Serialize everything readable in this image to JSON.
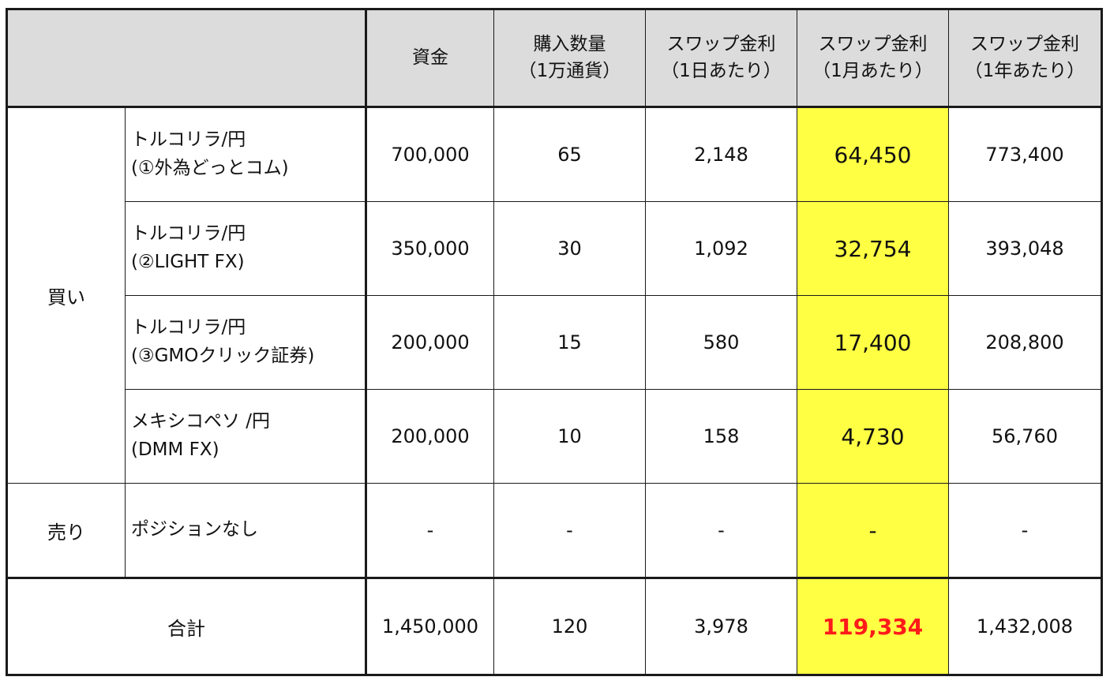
{
  "header": {
    "capital": "資金",
    "quantity_l1": "購入数量",
    "quantity_l2": "（1万通貨）",
    "swap_day_l1": "スワップ金利",
    "swap_day_l2": "（1日あたり）",
    "swap_month_l1": "スワップ金利",
    "swap_month_l2": "（1月あたり）",
    "swap_year_l1": "スワップ金利",
    "swap_year_l2": "（1年あたり）"
  },
  "groups": {
    "buy": "買い",
    "sell": "売り",
    "total": "合計"
  },
  "rows": [
    {
      "name_l1": "トルコリラ/円",
      "name_l2": "(①外為どっとコム)",
      "capital": "700,000",
      "quantity": "65",
      "day": "2,148",
      "month": "64,450",
      "year": "773,400"
    },
    {
      "name_l1": "トルコリラ/円",
      "name_l2": "(②LIGHT FX)",
      "capital": "350,000",
      "quantity": "30",
      "day": "1,092",
      "month": "32,754",
      "year": "393,048"
    },
    {
      "name_l1": "トルコリラ/円",
      "name_l2": "(③GMOクリック証券)",
      "capital": "200,000",
      "quantity": "15",
      "day": "580",
      "month": "17,400",
      "year": "208,800"
    },
    {
      "name_l1": "メキシコペソ /円",
      "name_l2": "(DMM FX)",
      "capital": "200,000",
      "quantity": "10",
      "day": "158",
      "month": "4,730",
      "year": "56,760"
    },
    {
      "name_l1": "ポジションなし",
      "name_l2": "",
      "capital": "-",
      "quantity": "-",
      "day": "-",
      "month": "-",
      "year": "-"
    }
  ],
  "total": {
    "capital": "1,450,000",
    "quantity": "120",
    "day": "3,978",
    "month": "119,334",
    "year": "1,432,008"
  },
  "colors": {
    "header_bg": "#dcdcdc",
    "highlight": "#ffff44",
    "total_month_text": "#ff1a1a"
  }
}
